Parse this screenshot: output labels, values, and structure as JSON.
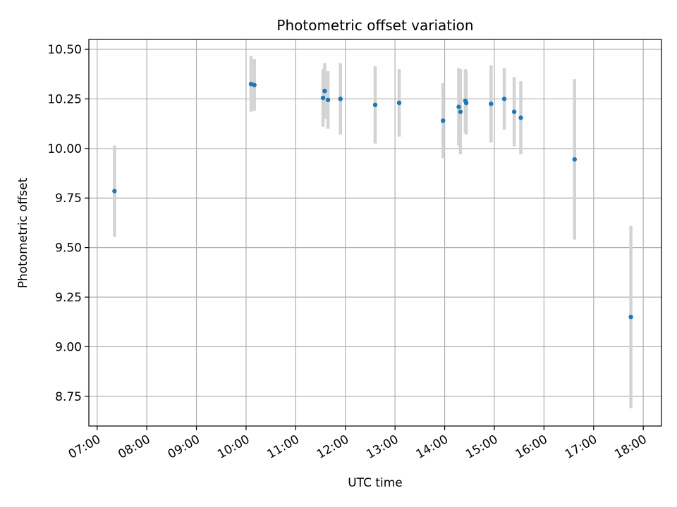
{
  "chart_data": {
    "type": "scatter",
    "title": "Photometric offset variation",
    "xlabel": "UTC time",
    "ylabel": "Photometric offset",
    "x_tick_labels": [
      "07:00",
      "08:00",
      "09:00",
      "10:00",
      "11:00",
      "12:00",
      "13:00",
      "14:00",
      "15:00",
      "16:00",
      "17:00",
      "18:00"
    ],
    "y_tick_labels": [
      "8.75",
      "9.00",
      "9.25",
      "9.50",
      "9.75",
      "10.00",
      "10.25",
      "10.50"
    ],
    "y_ticks": [
      8.75,
      9.0,
      9.25,
      9.5,
      9.75,
      10.0,
      10.25,
      10.5
    ],
    "xlim": [
      "06:50",
      "18:22"
    ],
    "ylim": [
      8.6,
      10.55
    ],
    "grid": true,
    "marker_color": "#1f77b4",
    "errorbar_color": "#d3d3d3",
    "points": [
      {
        "time": "07:21",
        "y": 9.785,
        "err": 0.23
      },
      {
        "time": "10:06",
        "y": 10.325,
        "err": 0.14
      },
      {
        "time": "10:10",
        "y": 10.32,
        "err": 0.13
      },
      {
        "time": "11:33",
        "y": 10.255,
        "err": 0.145
      },
      {
        "time": "11:35",
        "y": 10.29,
        "err": 0.14
      },
      {
        "time": "11:39",
        "y": 10.245,
        "err": 0.145
      },
      {
        "time": "11:54",
        "y": 10.25,
        "err": 0.18
      },
      {
        "time": "12:36",
        "y": 10.22,
        "err": 0.195
      },
      {
        "time": "13:05",
        "y": 10.23,
        "err": 0.17
      },
      {
        "time": "13:58",
        "y": 10.14,
        "err": 0.19
      },
      {
        "time": "14:17",
        "y": 10.21,
        "err": 0.195
      },
      {
        "time": "14:19",
        "y": 10.185,
        "err": 0.215
      },
      {
        "time": "14:25",
        "y": 10.24,
        "err": 0.16
      },
      {
        "time": "14:26",
        "y": 10.23,
        "err": 0.16
      },
      {
        "time": "14:56",
        "y": 10.225,
        "err": 0.195
      },
      {
        "time": "15:12",
        "y": 10.25,
        "err": 0.155
      },
      {
        "time": "15:24",
        "y": 10.185,
        "err": 0.175
      },
      {
        "time": "15:32",
        "y": 10.155,
        "err": 0.185
      },
      {
        "time": "16:37",
        "y": 9.945,
        "err": 0.405
      },
      {
        "time": "17:45",
        "y": 9.15,
        "err": 0.46
      }
    ]
  }
}
